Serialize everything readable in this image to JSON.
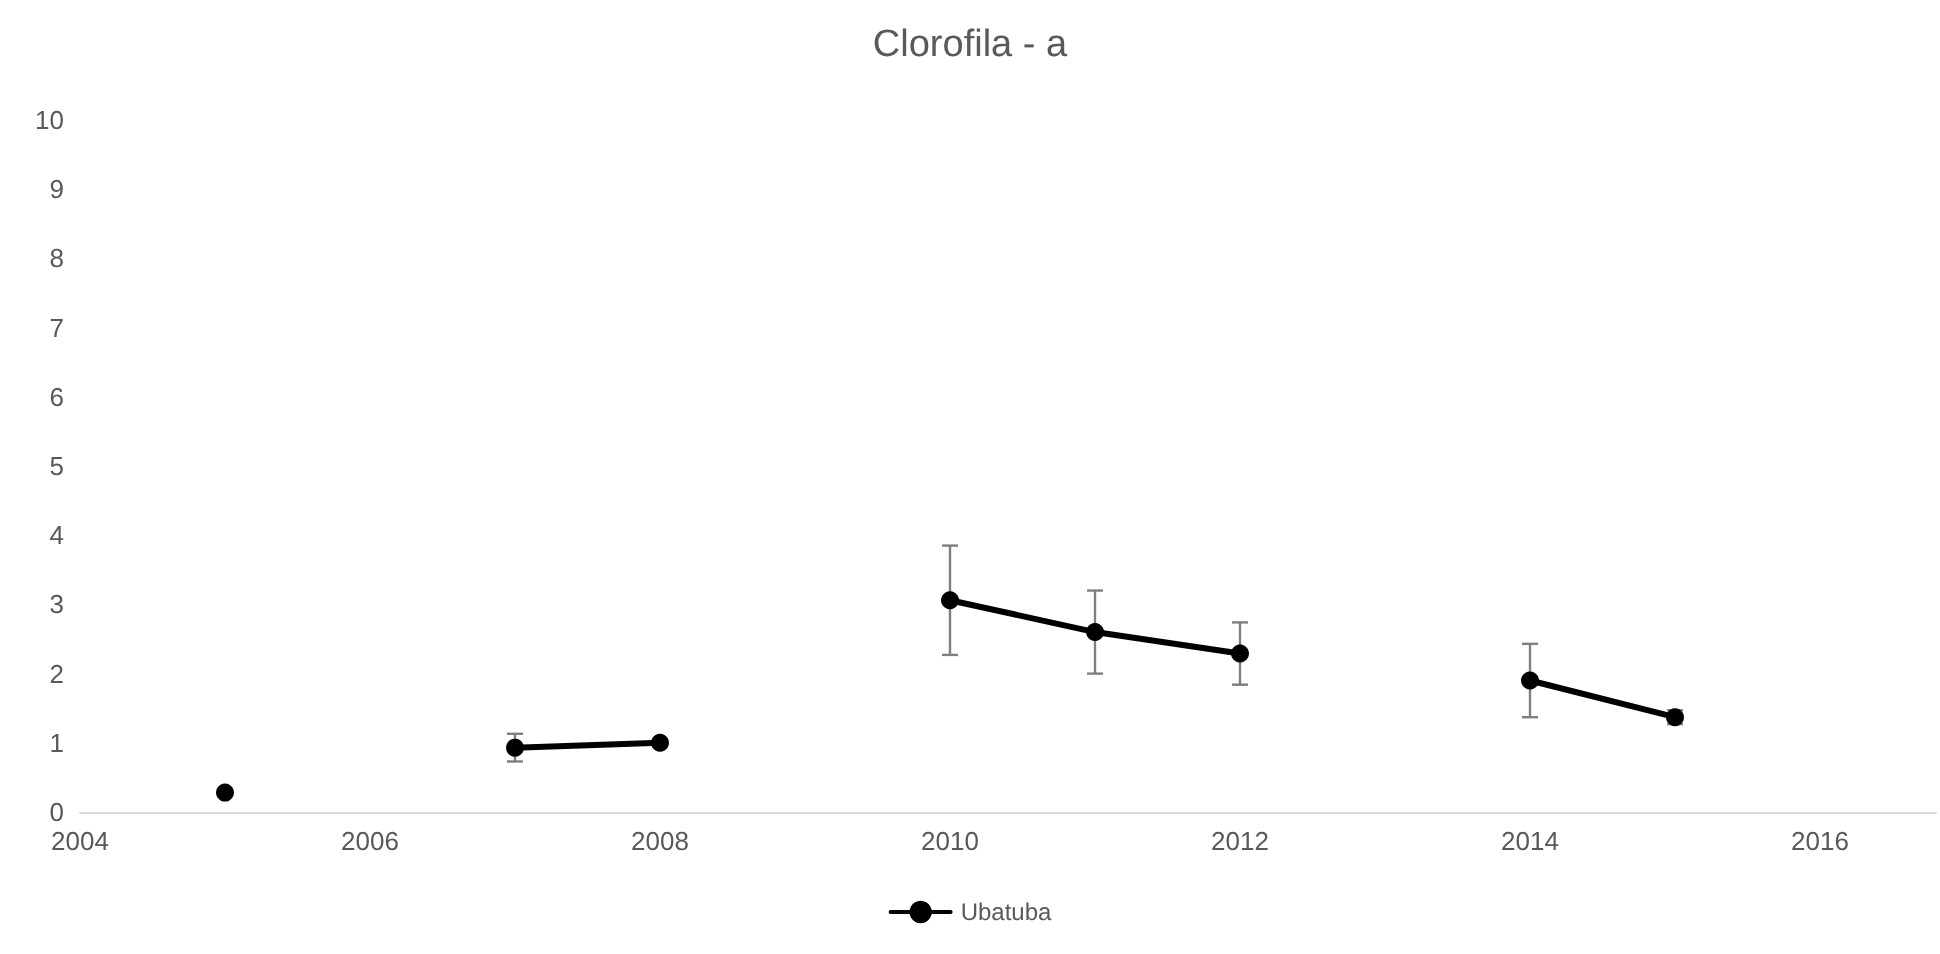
{
  "chart_data": {
    "type": "line",
    "title": "Clorofila - a",
    "x": [
      2005,
      2006,
      2007,
      2008,
      2009,
      2010,
      2011,
      2012,
      2013,
      2014,
      2015
    ],
    "series": [
      {
        "name": "Ubatuba",
        "color": "#000000",
        "values": [
          0.28,
          null,
          0.93,
          1.0,
          null,
          3.06,
          2.6,
          2.29,
          null,
          1.9,
          1.37
        ],
        "errors": [
          null,
          null,
          0.2,
          0.05,
          null,
          0.79,
          0.6,
          0.45,
          null,
          0.53,
          0.1
        ]
      }
    ],
    "xlim": [
      2004,
      2016.8
    ],
    "xticks": [
      2004,
      2006,
      2008,
      2010,
      2012,
      2014,
      2016
    ],
    "ylim": [
      0,
      10
    ],
    "yticks": [
      0,
      1,
      2,
      3,
      4,
      5,
      6,
      7,
      8,
      9,
      10
    ],
    "grid": false,
    "legend": "bottom",
    "marker": "circle",
    "line_style": "solid"
  }
}
